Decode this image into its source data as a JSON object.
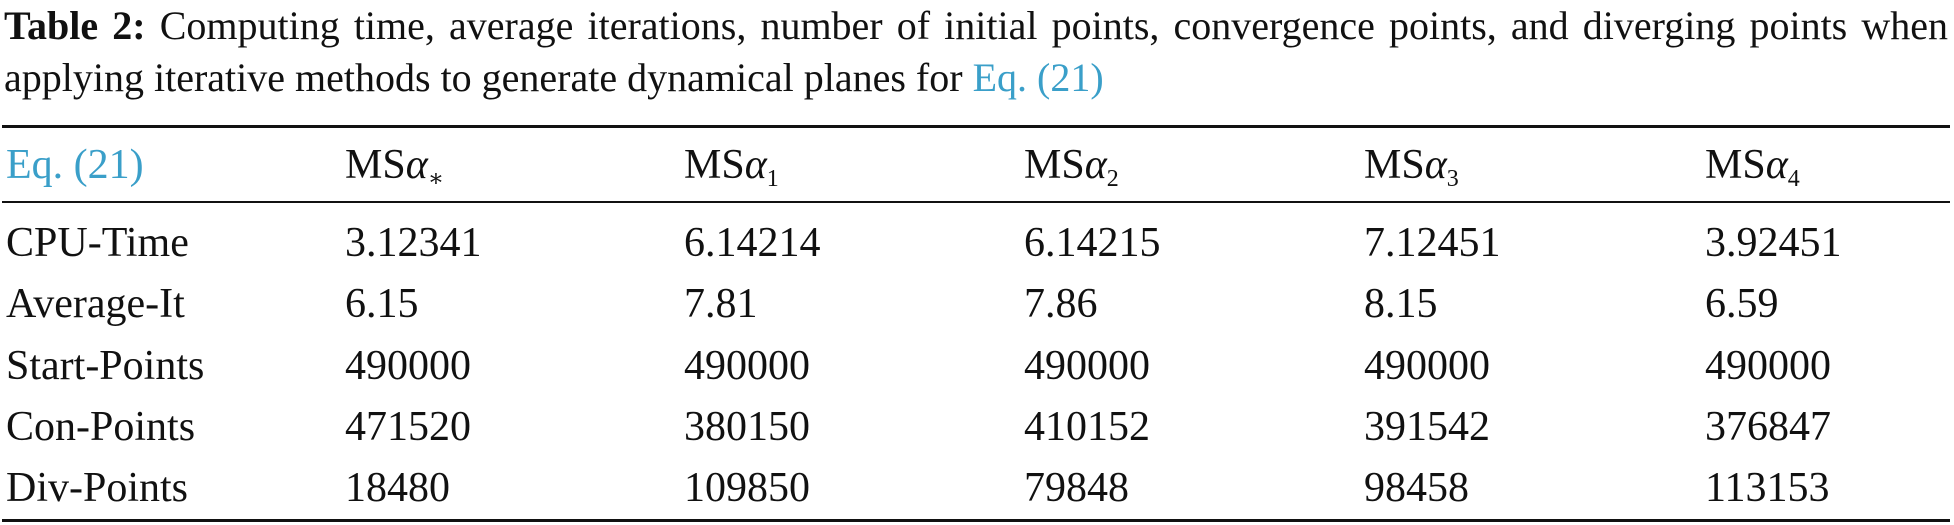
{
  "caption": {
    "label": "Table 2:",
    "text": "Computing time, average iterations, number of initial points, convergence points, and diverging points when applying iterative methods to generate dynamical planes for",
    "link": "Eq. (21)"
  },
  "table": {
    "header": [
      {
        "main": "Eq. (21)"
      },
      {
        "main": "MS",
        "symbol": "α",
        "sub": "∗"
      },
      {
        "main": "MS",
        "symbol": "α",
        "sub": "1"
      },
      {
        "main": "MS",
        "symbol": "α",
        "sub": "2"
      },
      {
        "main": "MS",
        "symbol": "α",
        "sub": "3"
      },
      {
        "main": "MS",
        "symbol": "α",
        "sub": "4"
      }
    ],
    "rows": [
      [
        "CPU-Time",
        "3.12341",
        "6.14214",
        "6.14215",
        "7.12451",
        "3.92451"
      ],
      [
        "Average-It",
        "6.15",
        "7.81",
        "7.86",
        "8.15",
        "6.59"
      ],
      [
        "Start-Points",
        "490000",
        "490000",
        "490000",
        "490000",
        "490000"
      ],
      [
        "Con-Points",
        "471520",
        "380150",
        "410152",
        "391542",
        "376847"
      ],
      [
        "Div-Points",
        "18480",
        "109850",
        "79848",
        "98458",
        "113153"
      ]
    ]
  }
}
